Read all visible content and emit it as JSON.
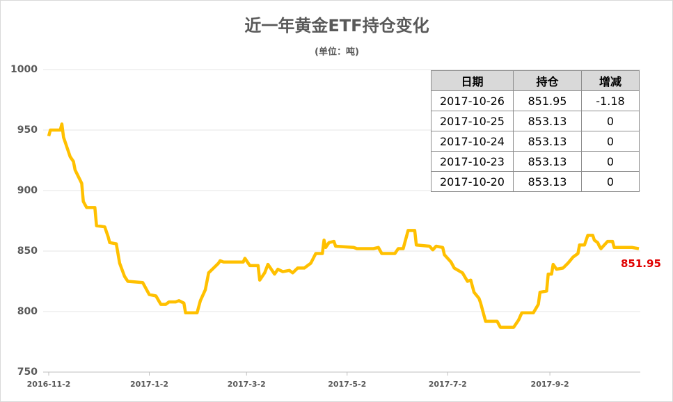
{
  "chart_data": {
    "type": "line",
    "title": "近一年黄金ETF持仓变化",
    "subtitle": "(单位：吨)",
    "color": "#ffc000",
    "label_color": "#e00000",
    "grid": true,
    "x": [
      "2016-11-2",
      "2016-11-3",
      "2016-11-9",
      "2016-11-10",
      "2016-11-11",
      "2016-11-15",
      "2016-11-17",
      "2016-11-18",
      "2016-11-22",
      "2016-11-23",
      "2016-11-25",
      "2016-11-30",
      "2016-12-1",
      "2016-12-6",
      "2016-12-8",
      "2016-12-9",
      "2016-12-13",
      "2016-12-15",
      "2016-12-18",
      "2016-12-20",
      "2016-12-29",
      "2017-1-2",
      "2017-1-6",
      "2017-1-9",
      "2017-1-12",
      "2017-1-14",
      "2017-1-18",
      "2017-1-20",
      "2017-1-23",
      "2017-1-24",
      "2017-1-31",
      "2017-2-2",
      "2017-2-5",
      "2017-2-7",
      "2017-2-10",
      "2017-2-13",
      "2017-2-14",
      "2017-2-16",
      "2017-2-28",
      "2017-3-1",
      "2017-3-4",
      "2017-3-9",
      "2017-3-10",
      "2017-3-13",
      "2017-3-15",
      "2017-3-19",
      "2017-3-21",
      "2017-3-24",
      "2017-3-28",
      "2017-3-30",
      "2017-4-2",
      "2017-4-6",
      "2017-4-10",
      "2017-4-13",
      "2017-4-17",
      "2017-4-18",
      "2017-4-19",
      "2017-4-21",
      "2017-4-24",
      "2017-4-25",
      "2017-5-6",
      "2017-5-8",
      "2017-5-18",
      "2017-5-21",
      "2017-5-23",
      "2017-5-31",
      "2017-6-2",
      "2017-6-5",
      "2017-6-8",
      "2017-6-12",
      "2017-6-13",
      "2017-6-21",
      "2017-6-23",
      "2017-6-25",
      "2017-6-29",
      "2017-6-30",
      "2017-7-4",
      "2017-7-6",
      "2017-7-11",
      "2017-7-14",
      "2017-7-16",
      "2017-7-18",
      "2017-7-21",
      "2017-7-22",
      "2017-7-25",
      "2017-8-1",
      "2017-8-3",
      "2017-8-11",
      "2017-8-14",
      "2017-8-16",
      "2017-8-23",
      "2017-8-26",
      "2017-8-27",
      "2017-8-31",
      "2017-9-1",
      "2017-9-3",
      "2017-9-4",
      "2017-9-6",
      "2017-9-10",
      "2017-9-13",
      "2017-9-16",
      "2017-9-19",
      "2017-9-20",
      "2017-9-23",
      "2017-9-25",
      "2017-9-28",
      "2017-9-29",
      "2017-10-1",
      "2017-10-2",
      "2017-10-3",
      "2017-10-7",
      "2017-10-10",
      "2017-10-11",
      "2017-10-22",
      "2017-10-26"
    ],
    "values": [
      945,
      950,
      950,
      955,
      944,
      928,
      924,
      917,
      906,
      891,
      886,
      886,
      871,
      870,
      862,
      857,
      856,
      840,
      829,
      825,
      824,
      814,
      813,
      806,
      806,
      808,
      808,
      809,
      807,
      799,
      799,
      809,
      818,
      832,
      836,
      840,
      842,
      841,
      841,
      844,
      838,
      838,
      826,
      832,
      839,
      831,
      835,
      833,
      834,
      832,
      836,
      836,
      840,
      848,
      848,
      859,
      853,
      857,
      858,
      854,
      853,
      852,
      852,
      853,
      848,
      848,
      852,
      852,
      867,
      867,
      855,
      854,
      851,
      854,
      853,
      847,
      841,
      836,
      832,
      825,
      826,
      816,
      811,
      807,
      792,
      792,
      787,
      787,
      793,
      799,
      799,
      806,
      816,
      817,
      831,
      831,
      839,
      835,
      836,
      840,
      845,
      848,
      855,
      855,
      863,
      863,
      859,
      857,
      854,
      852,
      858,
      858,
      853,
      853,
      851.95
    ],
    "xlim": [
      "2016-11-2",
      "2017-10-26"
    ],
    "xticks": [
      "2016-11-2",
      "2017-1-2",
      "2017-3-2",
      "2017-5-2",
      "2017-7-2",
      "2017-9-2"
    ],
    "ylim": [
      750,
      1000
    ],
    "yticks": [
      750,
      800,
      850,
      900,
      950,
      1000
    ]
  },
  "table": {
    "header": [
      "日期",
      "持仓",
      "增减"
    ],
    "rows": [
      [
        "2017-10-26",
        "851.95",
        "-1.18"
      ],
      [
        "2017-10-25",
        "853.13",
        "0"
      ],
      [
        "2017-10-24",
        "853.13",
        "0"
      ],
      [
        "2017-10-23",
        "853.13",
        "0"
      ],
      [
        "2017-10-20",
        "853.13",
        "0"
      ]
    ]
  }
}
